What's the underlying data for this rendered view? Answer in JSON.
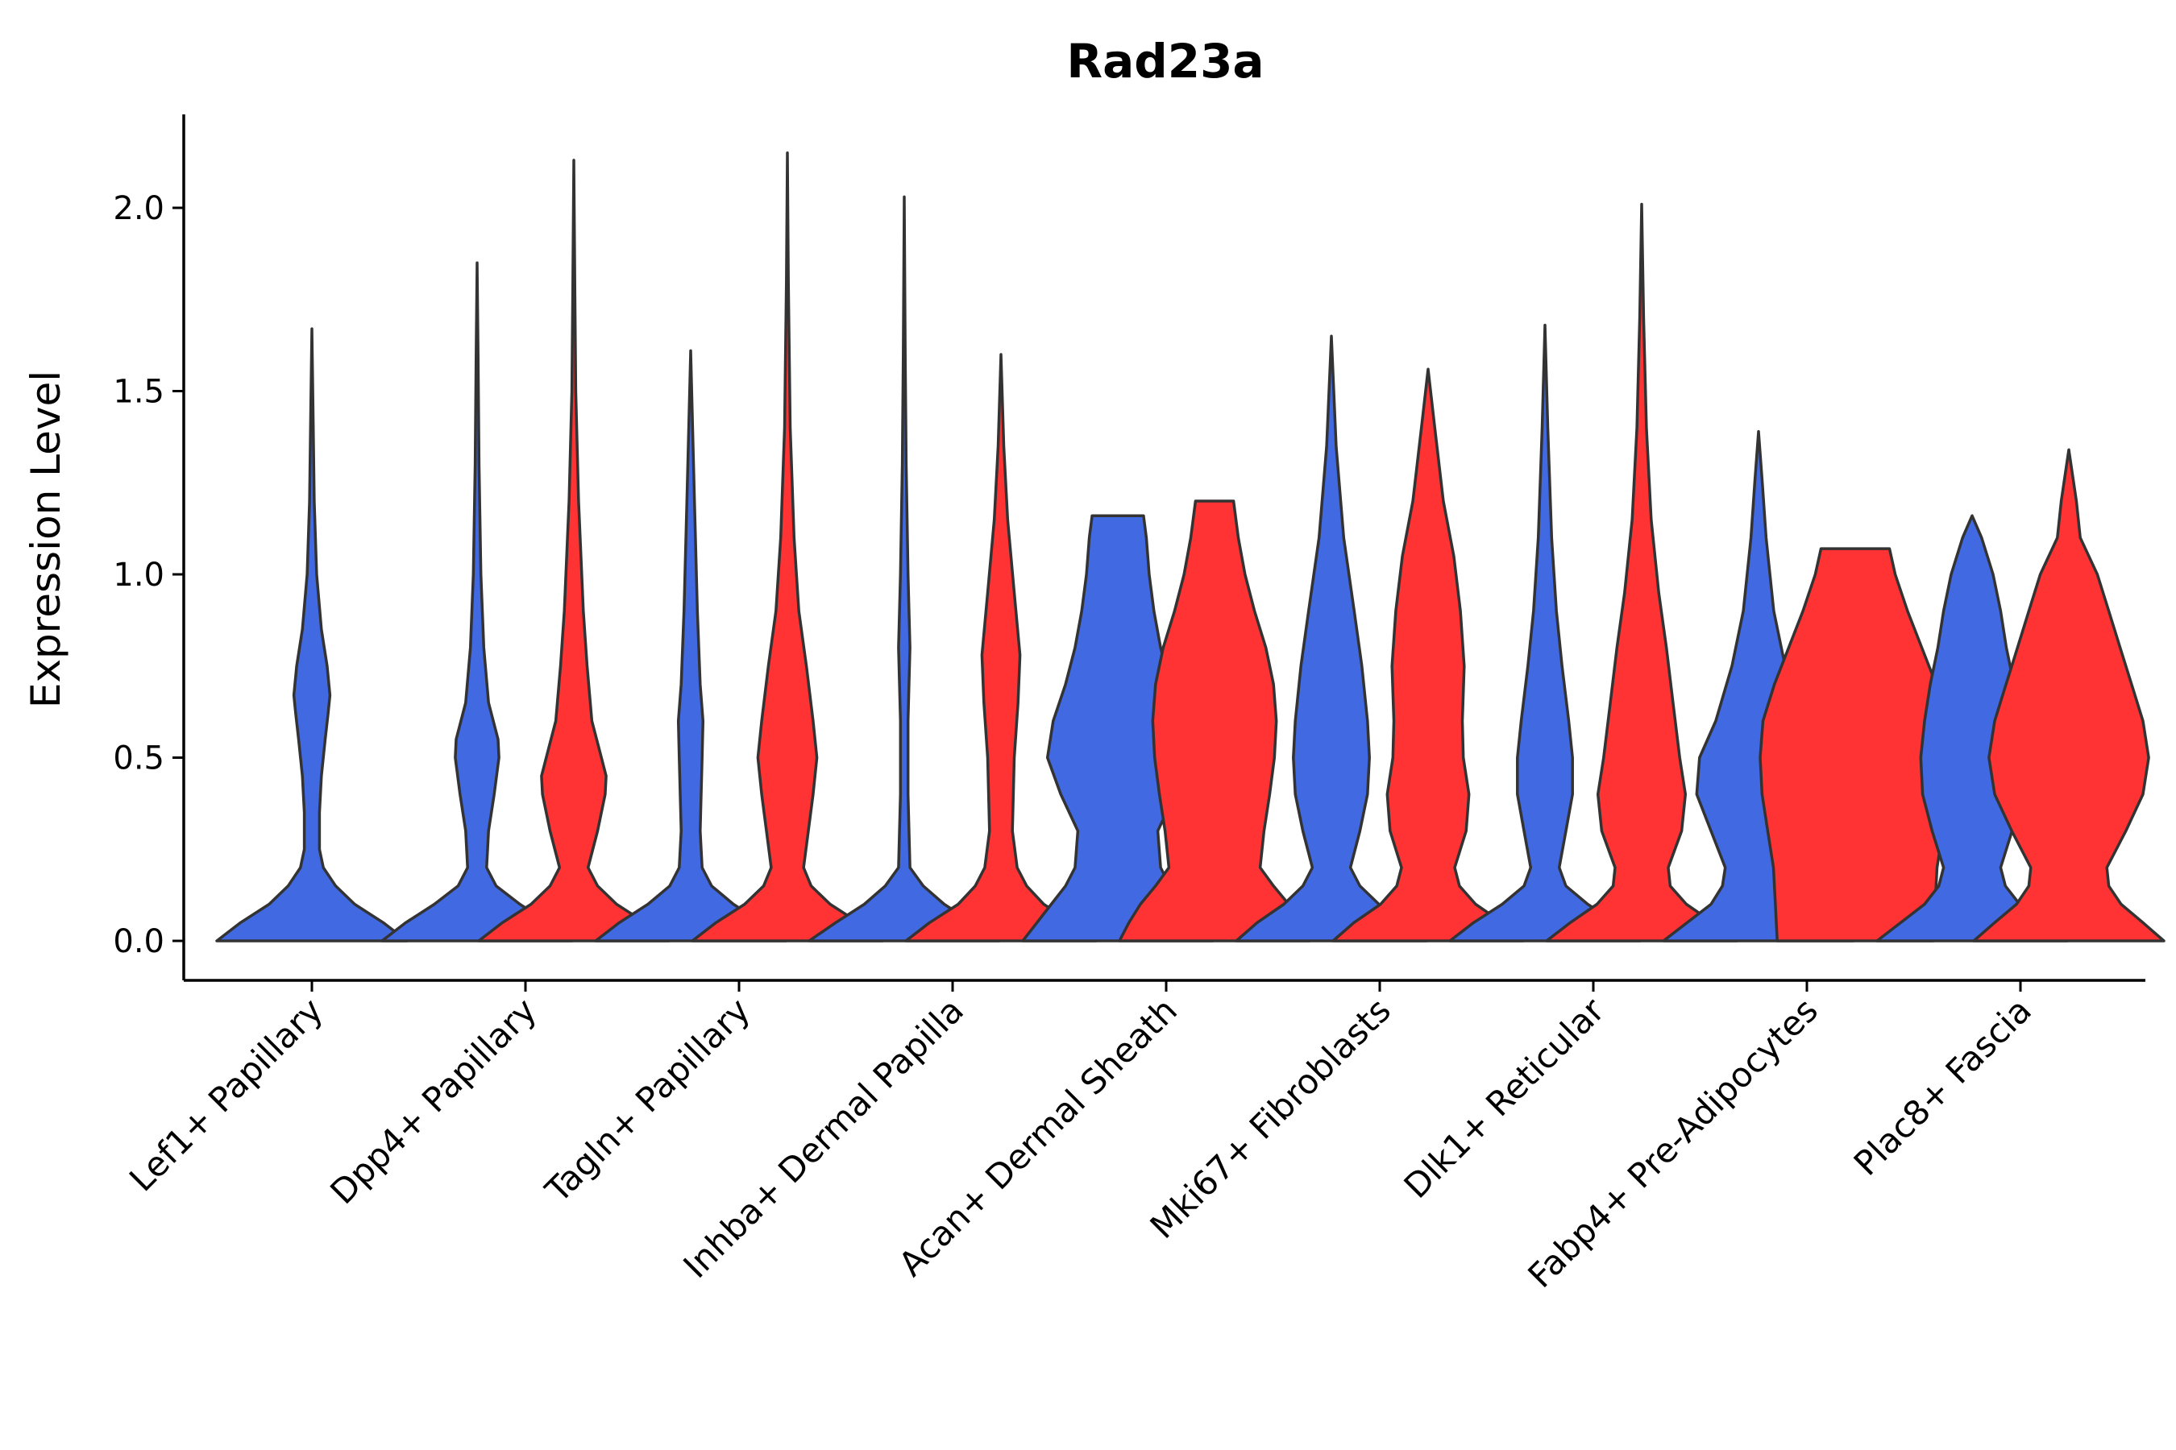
{
  "chart_data": {
    "type": "violin",
    "title": "Rad23a",
    "xlabel": "",
    "ylabel": "Expression Level",
    "ylim": [
      -0.11,
      2.25
    ],
    "yticks": [
      0.0,
      0.5,
      1.0,
      1.5,
      2.0
    ],
    "ytick_labels": [
      "0.0",
      "0.5",
      "1.0",
      "1.5",
      "2.0"
    ],
    "categories": [
      "Lef1+ Papillary",
      "Dpp4+ Papillary",
      "Tagln+ Papillary",
      "Inhba+ Dermal Papilla",
      "Acan+ Dermal Sheath",
      "Mki67+ Fibroblasts",
      "Dlk1+ Reticular",
      "Fabp4+ Pre-Adipocytes",
      "Plac8+ Fascia"
    ],
    "series_colors": [
      "#4169E1",
      "#FF3333"
    ],
    "violins": [
      {
        "category": 0,
        "series": 0,
        "max": 1.67,
        "profile": [
          [
            0,
            1
          ],
          [
            0.05,
            0.75
          ],
          [
            0.1,
            0.45
          ],
          [
            0.15,
            0.25
          ],
          [
            0.2,
            0.12
          ],
          [
            0.25,
            0.08
          ],
          [
            0.35,
            0.08
          ],
          [
            0.45,
            0.1
          ],
          [
            0.55,
            0.14
          ],
          [
            0.62,
            0.17
          ],
          [
            0.67,
            0.19
          ],
          [
            0.75,
            0.16
          ],
          [
            0.85,
            0.1
          ],
          [
            1.0,
            0.05
          ],
          [
            1.2,
            0.025
          ],
          [
            1.45,
            0.012
          ],
          [
            1.67,
            0
          ]
        ]
      },
      {
        "category": 1,
        "series": 0,
        "max": 1.85,
        "profile": [
          [
            0,
            1
          ],
          [
            0.05,
            0.75
          ],
          [
            0.1,
            0.45
          ],
          [
            0.15,
            0.2
          ],
          [
            0.2,
            0.1
          ],
          [
            0.3,
            0.12
          ],
          [
            0.4,
            0.18
          ],
          [
            0.5,
            0.23
          ],
          [
            0.55,
            0.22
          ],
          [
            0.65,
            0.12
          ],
          [
            0.8,
            0.07
          ],
          [
            1.0,
            0.04
          ],
          [
            1.3,
            0.02
          ],
          [
            1.6,
            0.01
          ],
          [
            1.85,
            0
          ]
        ]
      },
      {
        "category": 1,
        "series": 1,
        "max": 2.13,
        "profile": [
          [
            0,
            1
          ],
          [
            0.05,
            0.75
          ],
          [
            0.1,
            0.45
          ],
          [
            0.15,
            0.25
          ],
          [
            0.2,
            0.15
          ],
          [
            0.3,
            0.25
          ],
          [
            0.4,
            0.33
          ],
          [
            0.45,
            0.34
          ],
          [
            0.52,
            0.27
          ],
          [
            0.6,
            0.19
          ],
          [
            0.75,
            0.14
          ],
          [
            0.9,
            0.1
          ],
          [
            1.2,
            0.05
          ],
          [
            1.5,
            0.02
          ],
          [
            1.8,
            0.01
          ],
          [
            2.13,
            0
          ]
        ]
      },
      {
        "category": 2,
        "series": 0,
        "max": 1.61,
        "profile": [
          [
            0,
            1
          ],
          [
            0.05,
            0.75
          ],
          [
            0.1,
            0.45
          ],
          [
            0.15,
            0.22
          ],
          [
            0.2,
            0.12
          ],
          [
            0.3,
            0.1
          ],
          [
            0.5,
            0.12
          ],
          [
            0.6,
            0.13
          ],
          [
            0.7,
            0.1
          ],
          [
            0.9,
            0.07
          ],
          [
            1.2,
            0.04
          ],
          [
            1.4,
            0.02
          ],
          [
            1.61,
            0
          ]
        ]
      },
      {
        "category": 2,
        "series": 1,
        "max": 2.15,
        "profile": [
          [
            0,
            1
          ],
          [
            0.05,
            0.75
          ],
          [
            0.1,
            0.45
          ],
          [
            0.15,
            0.25
          ],
          [
            0.2,
            0.17
          ],
          [
            0.3,
            0.22
          ],
          [
            0.4,
            0.27
          ],
          [
            0.5,
            0.31
          ],
          [
            0.6,
            0.27
          ],
          [
            0.75,
            0.2
          ],
          [
            0.9,
            0.12
          ],
          [
            1.1,
            0.07
          ],
          [
            1.4,
            0.03
          ],
          [
            1.8,
            0.01
          ],
          [
            2.15,
            0
          ]
        ]
      },
      {
        "category": 3,
        "series": 0,
        "max": 2.03,
        "profile": [
          [
            0,
            1
          ],
          [
            0.05,
            0.72
          ],
          [
            0.1,
            0.42
          ],
          [
            0.15,
            0.2
          ],
          [
            0.2,
            0.06
          ],
          [
            0.4,
            0.04
          ],
          [
            0.6,
            0.04
          ],
          [
            0.8,
            0.06
          ],
          [
            1.0,
            0.04
          ],
          [
            1.3,
            0.02
          ],
          [
            1.6,
            0.01
          ],
          [
            2.03,
            0
          ]
        ]
      },
      {
        "category": 3,
        "series": 1,
        "max": 1.6,
        "profile": [
          [
            0,
            1
          ],
          [
            0.05,
            0.75
          ],
          [
            0.1,
            0.45
          ],
          [
            0.15,
            0.27
          ],
          [
            0.2,
            0.17
          ],
          [
            0.3,
            0.12
          ],
          [
            0.5,
            0.14
          ],
          [
            0.65,
            0.18
          ],
          [
            0.78,
            0.2
          ],
          [
            0.95,
            0.14
          ],
          [
            1.15,
            0.07
          ],
          [
            1.35,
            0.03
          ],
          [
            1.6,
            0
          ]
        ]
      },
      {
        "category": 4,
        "series": 0,
        "max": 1.16,
        "profile": [
          [
            0,
            1
          ],
          [
            0.05,
            0.85
          ],
          [
            0.1,
            0.7
          ],
          [
            0.15,
            0.55
          ],
          [
            0.2,
            0.45
          ],
          [
            0.3,
            0.42
          ],
          [
            0.4,
            0.6
          ],
          [
            0.5,
            0.74
          ],
          [
            0.6,
            0.68
          ],
          [
            0.7,
            0.55
          ],
          [
            0.8,
            0.45
          ],
          [
            0.9,
            0.38
          ],
          [
            1.0,
            0.33
          ],
          [
            1.1,
            0.3
          ],
          [
            1.16,
            0.27
          ]
        ]
      },
      {
        "category": 4,
        "series": 1,
        "max": 1.2,
        "profile": [
          [
            0,
            1
          ],
          [
            0.05,
            0.9
          ],
          [
            0.1,
            0.78
          ],
          [
            0.15,
            0.62
          ],
          [
            0.2,
            0.48
          ],
          [
            0.3,
            0.52
          ],
          [
            0.4,
            0.58
          ],
          [
            0.5,
            0.63
          ],
          [
            0.6,
            0.65
          ],
          [
            0.7,
            0.62
          ],
          [
            0.8,
            0.54
          ],
          [
            0.9,
            0.42
          ],
          [
            1.0,
            0.32
          ],
          [
            1.1,
            0.25
          ],
          [
            1.2,
            0.2
          ]
        ]
      },
      {
        "category": 5,
        "series": 0,
        "max": 1.65,
        "profile": [
          [
            0,
            1
          ],
          [
            0.05,
            0.78
          ],
          [
            0.1,
            0.5
          ],
          [
            0.15,
            0.3
          ],
          [
            0.2,
            0.2
          ],
          [
            0.3,
            0.3
          ],
          [
            0.4,
            0.38
          ],
          [
            0.5,
            0.4
          ],
          [
            0.6,
            0.38
          ],
          [
            0.75,
            0.32
          ],
          [
            0.9,
            0.24
          ],
          [
            1.1,
            0.13
          ],
          [
            1.35,
            0.05
          ],
          [
            1.65,
            0
          ]
        ]
      },
      {
        "category": 5,
        "series": 1,
        "max": 1.56,
        "profile": [
          [
            0,
            1
          ],
          [
            0.05,
            0.78
          ],
          [
            0.1,
            0.5
          ],
          [
            0.15,
            0.33
          ],
          [
            0.2,
            0.28
          ],
          [
            0.3,
            0.4
          ],
          [
            0.4,
            0.43
          ],
          [
            0.5,
            0.37
          ],
          [
            0.6,
            0.36
          ],
          [
            0.75,
            0.38
          ],
          [
            0.9,
            0.34
          ],
          [
            1.05,
            0.27
          ],
          [
            1.2,
            0.16
          ],
          [
            1.4,
            0.07
          ],
          [
            1.56,
            0
          ]
        ]
      },
      {
        "category": 6,
        "series": 0,
        "max": 1.68,
        "profile": [
          [
            0,
            1
          ],
          [
            0.05,
            0.75
          ],
          [
            0.1,
            0.45
          ],
          [
            0.15,
            0.22
          ],
          [
            0.2,
            0.15
          ],
          [
            0.3,
            0.22
          ],
          [
            0.4,
            0.29
          ],
          [
            0.5,
            0.29
          ],
          [
            0.6,
            0.25
          ],
          [
            0.75,
            0.18
          ],
          [
            0.9,
            0.12
          ],
          [
            1.1,
            0.07
          ],
          [
            1.4,
            0.03
          ],
          [
            1.68,
            0
          ]
        ]
      },
      {
        "category": 6,
        "series": 1,
        "max": 2.01,
        "profile": [
          [
            0,
            1
          ],
          [
            0.05,
            0.75
          ],
          [
            0.1,
            0.47
          ],
          [
            0.15,
            0.3
          ],
          [
            0.2,
            0.28
          ],
          [
            0.3,
            0.42
          ],
          [
            0.4,
            0.46
          ],
          [
            0.5,
            0.4
          ],
          [
            0.65,
            0.33
          ],
          [
            0.8,
            0.26
          ],
          [
            0.95,
            0.18
          ],
          [
            1.15,
            0.1
          ],
          [
            1.4,
            0.05
          ],
          [
            1.7,
            0.02
          ],
          [
            2.01,
            0
          ]
        ]
      },
      {
        "category": 7,
        "series": 0,
        "max": 1.39,
        "profile": [
          [
            0,
            1
          ],
          [
            0.05,
            0.75
          ],
          [
            0.1,
            0.5
          ],
          [
            0.15,
            0.38
          ],
          [
            0.2,
            0.35
          ],
          [
            0.3,
            0.5
          ],
          [
            0.4,
            0.65
          ],
          [
            0.5,
            0.62
          ],
          [
            0.6,
            0.45
          ],
          [
            0.75,
            0.28
          ],
          [
            0.9,
            0.16
          ],
          [
            1.1,
            0.08
          ],
          [
            1.25,
            0.04
          ],
          [
            1.39,
            0
          ]
        ]
      },
      {
        "category": 7,
        "series": 1,
        "max": 1.07,
        "profile": [
          [
            0,
            0.82
          ],
          [
            0.1,
            0.84
          ],
          [
            0.2,
            0.86
          ],
          [
            0.3,
            0.92
          ],
          [
            0.4,
            0.98
          ],
          [
            0.5,
            1.0
          ],
          [
            0.6,
            0.97
          ],
          [
            0.7,
            0.85
          ],
          [
            0.8,
            0.7
          ],
          [
            0.9,
            0.55
          ],
          [
            1.0,
            0.42
          ],
          [
            1.07,
            0.36
          ]
        ]
      },
      {
        "category": 8,
        "series": 0,
        "max": 1.16,
        "profile": [
          [
            0,
            1
          ],
          [
            0.05,
            0.75
          ],
          [
            0.1,
            0.5
          ],
          [
            0.15,
            0.35
          ],
          [
            0.2,
            0.3
          ],
          [
            0.3,
            0.42
          ],
          [
            0.4,
            0.52
          ],
          [
            0.5,
            0.54
          ],
          [
            0.6,
            0.5
          ],
          [
            0.7,
            0.44
          ],
          [
            0.8,
            0.36
          ],
          [
            0.9,
            0.3
          ],
          [
            1.0,
            0.22
          ],
          [
            1.1,
            0.1
          ],
          [
            1.16,
            0
          ]
        ]
      },
      {
        "category": 8,
        "series": 1,
        "max": 1.34,
        "profile": [
          [
            0,
            1
          ],
          [
            0.05,
            0.78
          ],
          [
            0.1,
            0.55
          ],
          [
            0.15,
            0.42
          ],
          [
            0.2,
            0.4
          ],
          [
            0.3,
            0.6
          ],
          [
            0.4,
            0.78
          ],
          [
            0.5,
            0.84
          ],
          [
            0.6,
            0.78
          ],
          [
            0.7,
            0.66
          ],
          [
            0.8,
            0.54
          ],
          [
            0.9,
            0.42
          ],
          [
            1.0,
            0.3
          ],
          [
            1.1,
            0.12
          ],
          [
            1.2,
            0.08
          ],
          [
            1.34,
            0
          ]
        ]
      }
    ]
  }
}
